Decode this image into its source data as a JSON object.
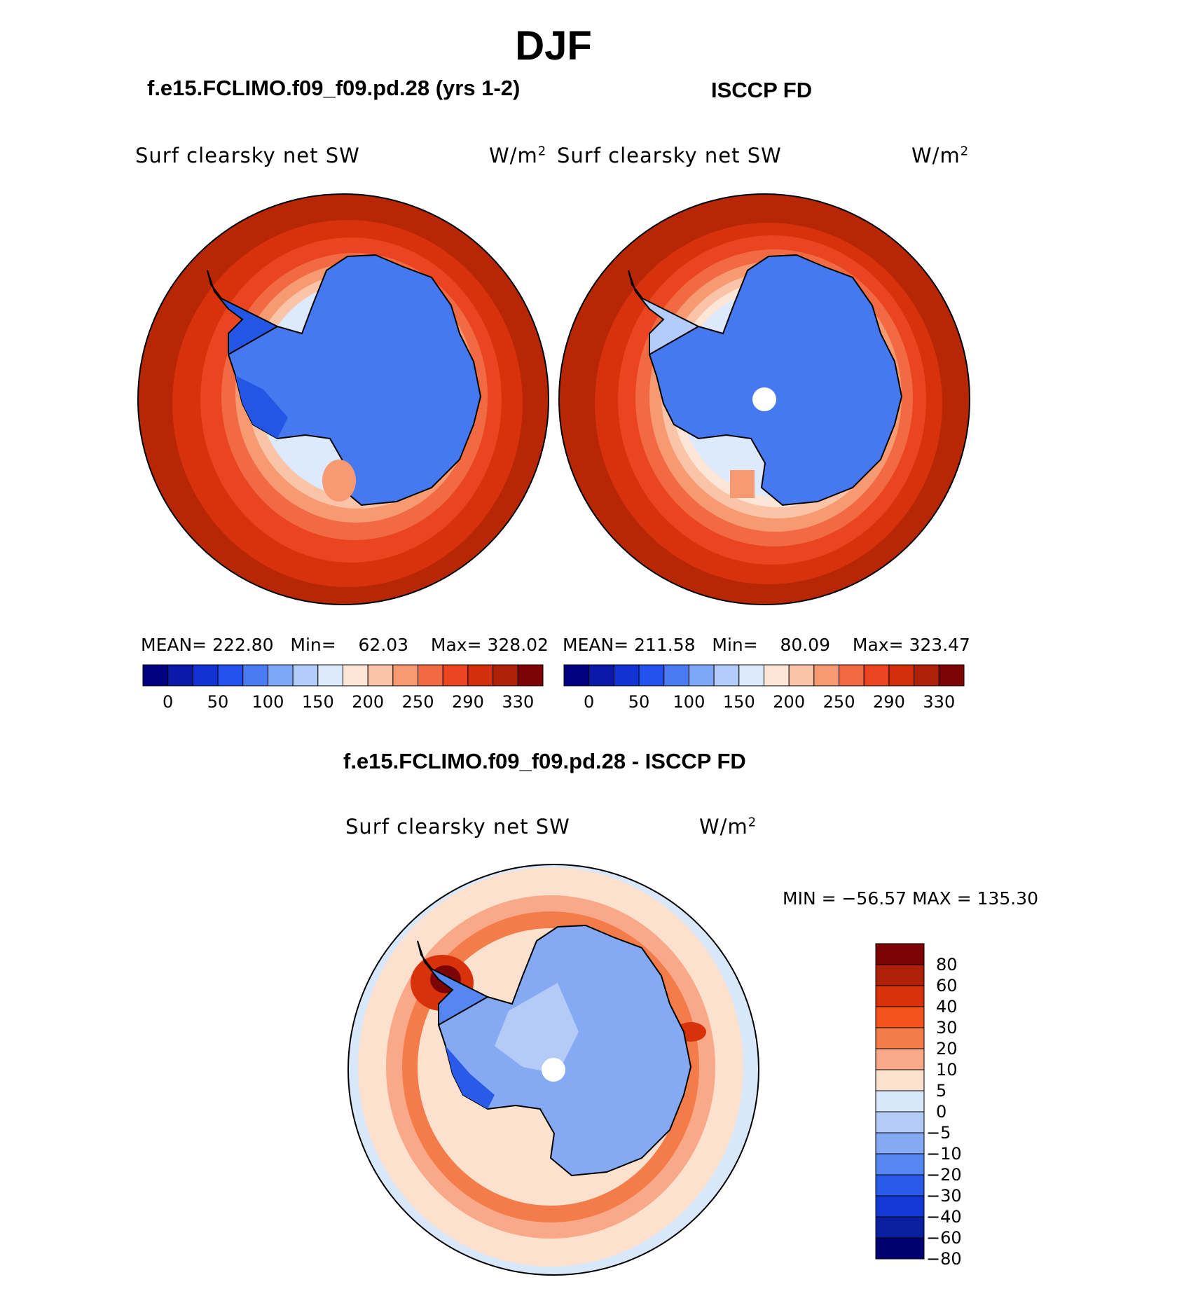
{
  "figure": {
    "title": "DJF",
    "case_title": "f.e15.FCLIMO.f09_f09.pd.28 (yrs 1-2)",
    "obs_title": "ISCCP FD",
    "diff_title": "f.e15.FCLIMO.f09_f09.pd.28 - ISCCP FD"
  },
  "panels": [
    {
      "id": "model",
      "variable": "Surf  clearsky  net  SW",
      "units_base": "W/m",
      "units_exp": "2",
      "stats": {
        "mean_label": "MEAN=",
        "mean": "222.80",
        "min_label": "Min=",
        "min": "62.03",
        "max_label": "Max=",
        "max": "328.02"
      }
    },
    {
      "id": "obs",
      "variable": "Surf  clearsky  net  SW",
      "units_base": "W/m",
      "units_exp": "2",
      "stats": {
        "mean_label": "MEAN=",
        "mean": "211.58",
        "min_label": "Min=",
        "min": "80.09",
        "max_label": "Max=",
        "max": "323.47"
      }
    },
    {
      "id": "diff",
      "variable": "Surf  clearsky  net  SW",
      "units_base": "W/m",
      "units_exp": "2",
      "minmax_text": "MIN = −56.57 MAX = 135.30"
    }
  ],
  "colorbars": {
    "abs": {
      "labels": [
        "0",
        "50",
        "100",
        "150",
        "200",
        "250",
        "290",
        "330"
      ],
      "colors": [
        "#000080",
        "#0a19a8",
        "#1232d4",
        "#2352ee",
        "#4a7bf2",
        "#7fa7f7",
        "#b4ccfa",
        "#dde9fc",
        "#fde6d6",
        "#fbc4a8",
        "#f79a72",
        "#f26a44",
        "#ea4420",
        "#d42f0c",
        "#ae2007",
        "#7d0404"
      ]
    },
    "diff": {
      "labels": [
        "80",
        "60",
        "40",
        "30",
        "20",
        "10",
        "5",
        "0",
        "−5",
        "−10",
        "−20",
        "−30",
        "−40",
        "−60",
        "−80"
      ],
      "colors": [
        "#7d0404",
        "#ae2007",
        "#d8320c",
        "#f5531e",
        "#f47c4a",
        "#f9a989",
        "#fde1cf",
        "#d8e8fa",
        "#b5cbf7",
        "#86a9f4",
        "#5586f1",
        "#2a5be8",
        "#1438d4",
        "#0a20a0",
        "#000070"
      ]
    }
  },
  "map_colors": {
    "land_model": "#4678f0",
    "land_model_dark": "#2456e6",
    "land_obs": "#4678f0",
    "ocean_far": "#b72706",
    "missing": "#ffffff",
    "coast": "#000000"
  }
}
